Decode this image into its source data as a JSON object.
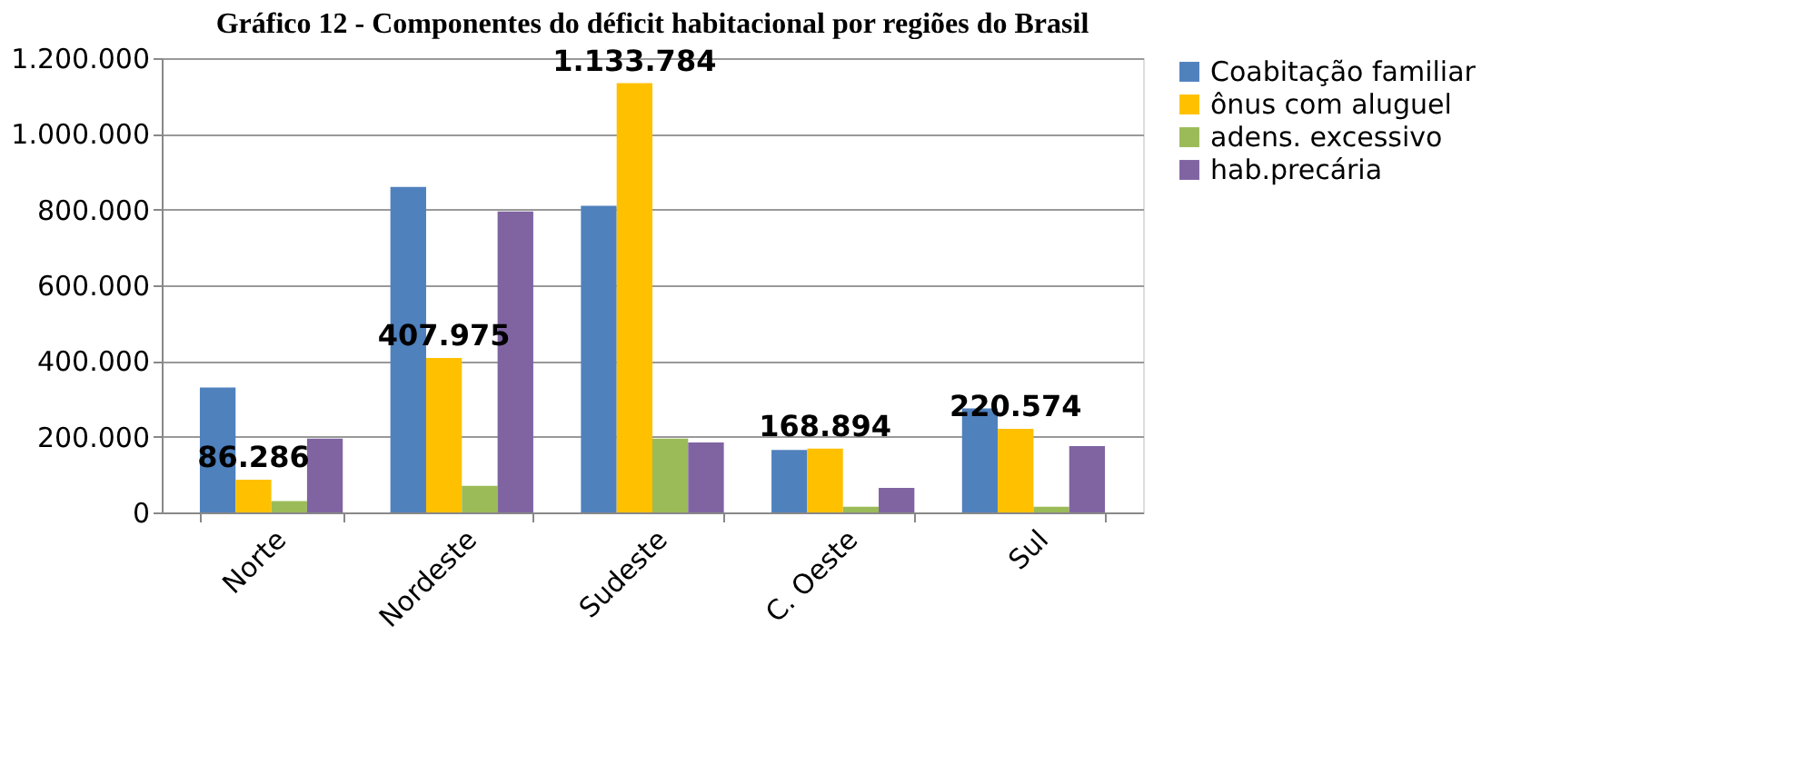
{
  "chart_data": {
    "type": "bar",
    "title": "Gráfico 12 - Componentes do déficit habitacional por regiões do Brasil",
    "categories": [
      "Norte",
      "Nordeste",
      "Sudeste",
      "C. Oeste",
      "Sul"
    ],
    "series": [
      {
        "name": "Coabitação familiar",
        "color": "#4f81bd",
        "values": [
          330000,
          860000,
          810000,
          165000,
          275000
        ]
      },
      {
        "name": "ônus com aluguel",
        "color": "#ffc000",
        "values": [
          86286,
          407975,
          1133784,
          168894,
          220574
        ],
        "value_labels": [
          "86.286",
          "407.975",
          "1.133.784",
          "168.894",
          "220.574"
        ]
      },
      {
        "name": "adens. excessivo",
        "color": "#9bbb59",
        "values": [
          30000,
          70000,
          195000,
          15000,
          15000
        ]
      },
      {
        "name": "hab.precária",
        "color": "#8064a2",
        "values": [
          195000,
          795000,
          185000,
          65000,
          175000
        ]
      }
    ],
    "ylim": [
      0,
      1200000
    ],
    "yticks": [
      0,
      {
        "value": 200000,
        "label": "200.000"
      },
      {
        "value": 400000,
        "label": "400.000"
      },
      {
        "value": 600000,
        "label": "600.000"
      },
      {
        "value": 800000,
        "label": "800.000"
      },
      {
        "value": 1000000,
        "label": "1.000.000"
      },
      {
        "value": 1200000,
        "label": "1.200.000"
      }
    ],
    "grid": "y",
    "legend": "right"
  }
}
